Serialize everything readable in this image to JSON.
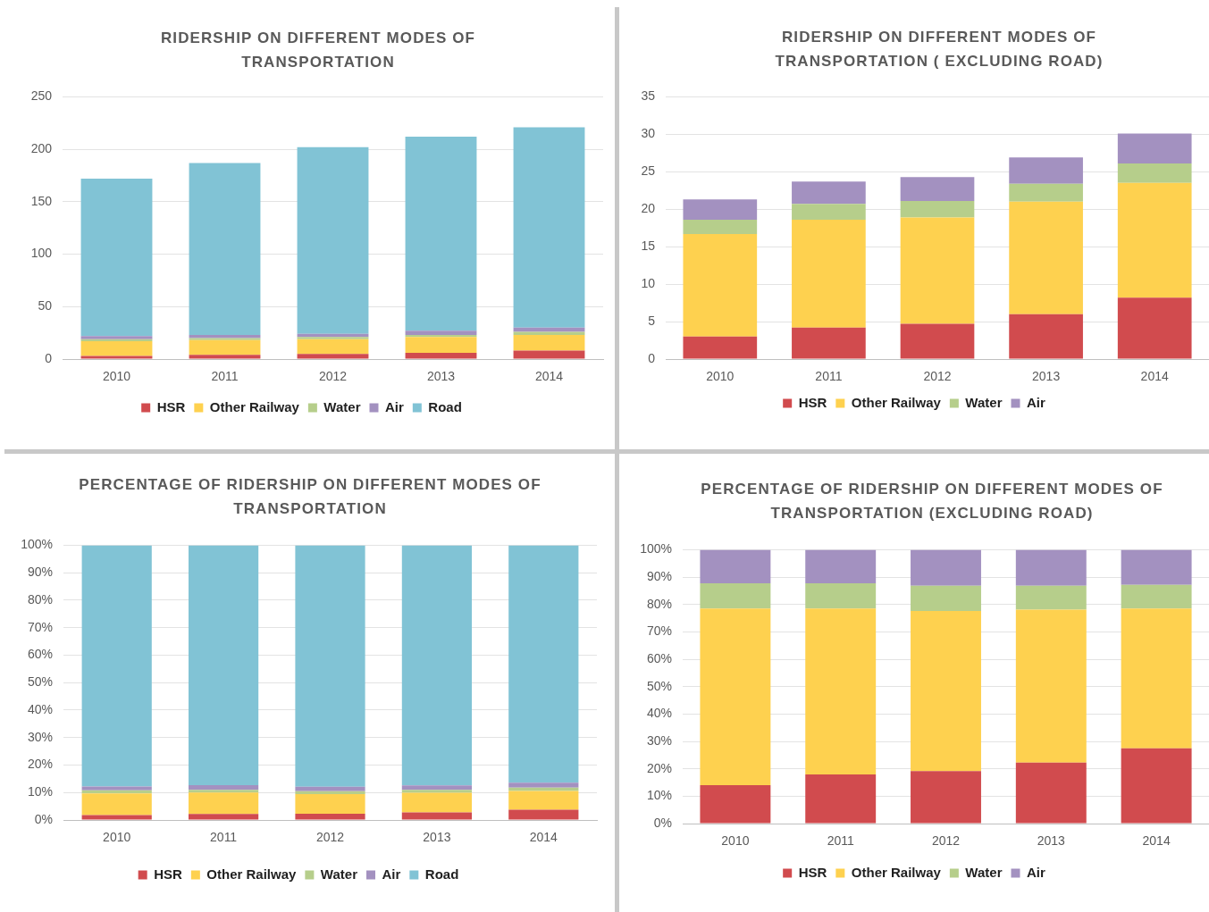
{
  "chart_data": [
    {
      "type": "bar",
      "title": "RIDERSHIP ON DIFFERENT MODES OF TRANSPORTATION",
      "categories": [
        "2010",
        "2011",
        "2012",
        "2013",
        "2014"
      ],
      "stacked": true,
      "series": [
        {
          "name": "HSR",
          "color": "#d14b4e",
          "values": [
            3,
            4,
            5,
            6,
            8
          ]
        },
        {
          "name": "Other Railway",
          "color": "#fed14f",
          "values": [
            14,
            14,
            14,
            15,
            15
          ]
        },
        {
          "name": "Water",
          "color": "#b6ce8b",
          "values": [
            2,
            2,
            2,
            2,
            3
          ]
        },
        {
          "name": "Air",
          "color": "#a391c0",
          "values": [
            3,
            3,
            3,
            4,
            4
          ]
        },
        {
          "name": "Road",
          "color": "#81c3d5",
          "values": [
            150,
            164,
            178,
            185,
            191
          ]
        }
      ],
      "ylim": [
        0,
        250
      ],
      "yticks": [
        0,
        50,
        100,
        150,
        200,
        250
      ],
      "grid": "y",
      "legend": "bottom"
    },
    {
      "type": "bar",
      "title": "RIDERSHIP ON DIFFERENT MODES OF TRANSPORTATION ( EXCLUDING ROAD)",
      "categories": [
        "2010",
        "2011",
        "2012",
        "2013",
        "2014"
      ],
      "stacked": true,
      "series": [
        {
          "name": "HSR",
          "color": "#d14b4e",
          "values": [
            3.0,
            4.2,
            4.7,
            6.0,
            8.2
          ]
        },
        {
          "name": "Other Railway",
          "color": "#fed14f",
          "values": [
            13.7,
            14.4,
            14.2,
            15.0,
            15.3
          ]
        },
        {
          "name": "Water",
          "color": "#b6ce8b",
          "values": [
            1.9,
            2.1,
            2.2,
            2.4,
            2.6
          ]
        },
        {
          "name": "Air",
          "color": "#a391c0",
          "values": [
            2.7,
            3.0,
            3.2,
            3.5,
            4.0
          ]
        }
      ],
      "ylim": [
        0,
        35
      ],
      "yticks": [
        0,
        5,
        10,
        15,
        20,
        25,
        30,
        35
      ],
      "grid": "y",
      "legend": "bottom"
    },
    {
      "type": "bar",
      "title": "PERCENTAGE OF RIDERSHIP ON DIFFERENT MODES OF TRANSPORTATION",
      "categories": [
        "2010",
        "2011",
        "2012",
        "2013",
        "2014"
      ],
      "stacked": true,
      "series": [
        {
          "name": "HSR",
          "color": "#d14b4e",
          "values": [
            1.8,
            2.2,
            2.3,
            2.8,
            3.7
          ]
        },
        {
          "name": "Other Railway",
          "color": "#fed14f",
          "values": [
            7.9,
            7.8,
            7.1,
            7.1,
            6.9
          ]
        },
        {
          "name": "Water",
          "color": "#b6ce8b",
          "values": [
            1.1,
            1.0,
            1.1,
            1.1,
            1.2
          ]
        },
        {
          "name": "Air",
          "color": "#a391c0",
          "values": [
            1.4,
            1.7,
            1.6,
            1.6,
            1.8
          ]
        },
        {
          "name": "Road",
          "color": "#81c3d5",
          "values": [
            87.8,
            87.3,
            87.9,
            87.4,
            86.4
          ]
        }
      ],
      "ylim": [
        0,
        100
      ],
      "yticks": [
        {
          "value": 0,
          "label": "0%"
        },
        {
          "value": 10,
          "label": "10%"
        },
        {
          "value": 20,
          "label": "20%"
        },
        {
          "value": 30,
          "label": "30%"
        },
        {
          "value": 40,
          "label": "40%"
        },
        {
          "value": 50,
          "label": "50%"
        },
        {
          "value": 60,
          "label": "60%"
        },
        {
          "value": 70,
          "label": "70%"
        },
        {
          "value": 80,
          "label": "80%"
        },
        {
          "value": 90,
          "label": "90%"
        },
        {
          "value": 100,
          "label": "100%"
        }
      ],
      "grid": "y",
      "legend": "bottom"
    },
    {
      "type": "bar",
      "title": "PERCENTAGE OF RIDERSHIP ON DIFFERENT MODES OF TRANSPORTATION (EXCLUDING ROAD)",
      "categories": [
        "2010",
        "2011",
        "2012",
        "2013",
        "2014"
      ],
      "stacked": true,
      "series": [
        {
          "name": "HSR",
          "color": "#d14b4e",
          "values": [
            14.0,
            17.9,
            19.2,
            22.3,
            27.5
          ]
        },
        {
          "name": "Other Railway",
          "color": "#fed14f",
          "values": [
            64.5,
            60.6,
            58.4,
            55.8,
            51.0
          ]
        },
        {
          "name": "Water",
          "color": "#b6ce8b",
          "values": [
            9.2,
            9.2,
            9.2,
            8.7,
            8.7
          ]
        },
        {
          "name": "Air",
          "color": "#a391c0",
          "values": [
            12.3,
            12.3,
            13.2,
            13.2,
            12.8
          ]
        }
      ],
      "ylim": [
        0,
        100
      ],
      "yticks": [
        {
          "value": 0,
          "label": "0%"
        },
        {
          "value": 10,
          "label": "10%"
        },
        {
          "value": 20,
          "label": "20%"
        },
        {
          "value": 30,
          "label": "30%"
        },
        {
          "value": 40,
          "label": "40%"
        },
        {
          "value": 50,
          "label": "50%"
        },
        {
          "value": 60,
          "label": "60%"
        },
        {
          "value": 70,
          "label": "70%"
        },
        {
          "value": 80,
          "label": "80%"
        },
        {
          "value": 90,
          "label": "90%"
        },
        {
          "value": 100,
          "label": "100%"
        }
      ],
      "grid": "y",
      "legend": "bottom"
    }
  ]
}
